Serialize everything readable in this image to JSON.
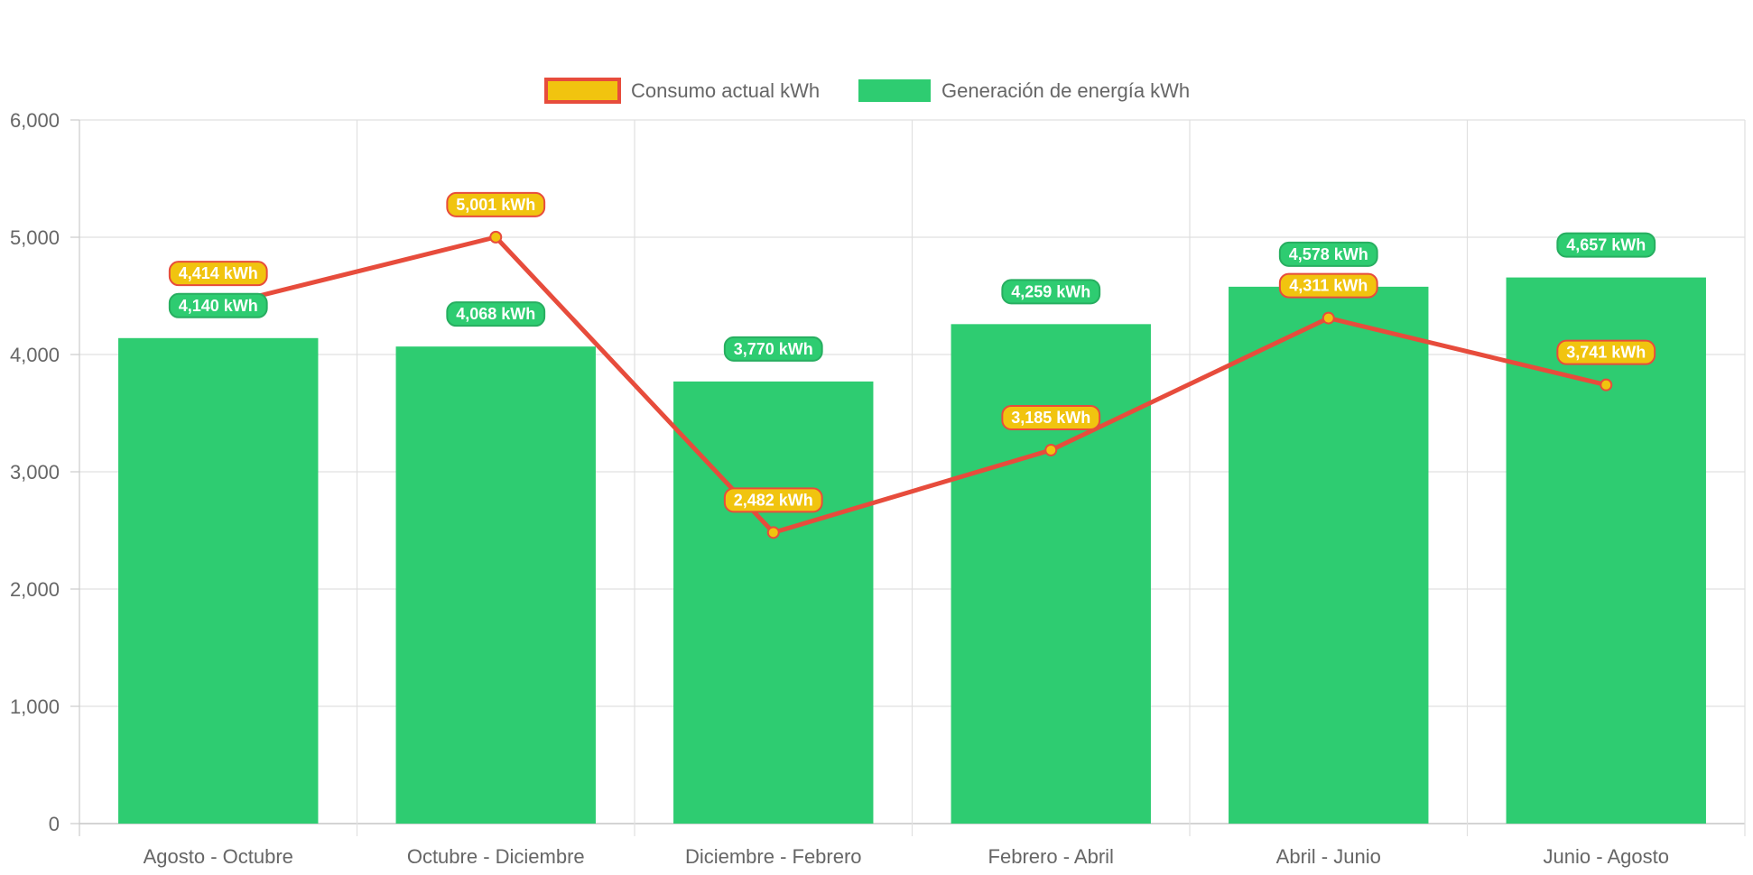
{
  "chart_data": {
    "type": "bar",
    "categories": [
      "Agosto - Octubre",
      "Octubre - Diciembre",
      "Diciembre - Febrero",
      "Febrero - Abril",
      "Abril - Junio",
      "Junio - Agosto"
    ],
    "series": [
      {
        "name": "Generación de energía kWh",
        "type": "bar",
        "values": [
          4140,
          4068,
          3770,
          4259,
          4578,
          4657
        ],
        "labels": [
          "4,140 kWh",
          "4,068 kWh",
          "3,770 kWh",
          "4,259 kWh",
          "4,578 kWh",
          "4,657 kWh"
        ],
        "color": "#2ecc71",
        "border_color": "#27ae60"
      },
      {
        "name": "Consumo actual kWh",
        "type": "line",
        "values": [
          4414,
          5001,
          2482,
          3185,
          4311,
          3741
        ],
        "labels": [
          "4,414 kWh",
          "5,001 kWh",
          "2,482 kWh",
          "3,185 kWh",
          "4,311 kWh",
          "3,741 kWh"
        ],
        "color": "#f1c40f",
        "border_color": "#e74c3c"
      }
    ],
    "legend": [
      "Consumo actual kWh",
      "Generación de energía kWh"
    ],
    "legend_position": "top",
    "ylim": [
      0,
      6000
    ],
    "yticks": [
      "0",
      "1,000",
      "2,000",
      "3,000",
      "4,000",
      "5,000",
      "6,000"
    ],
    "grid": true,
    "title": "",
    "xlabel": "",
    "ylabel": ""
  }
}
